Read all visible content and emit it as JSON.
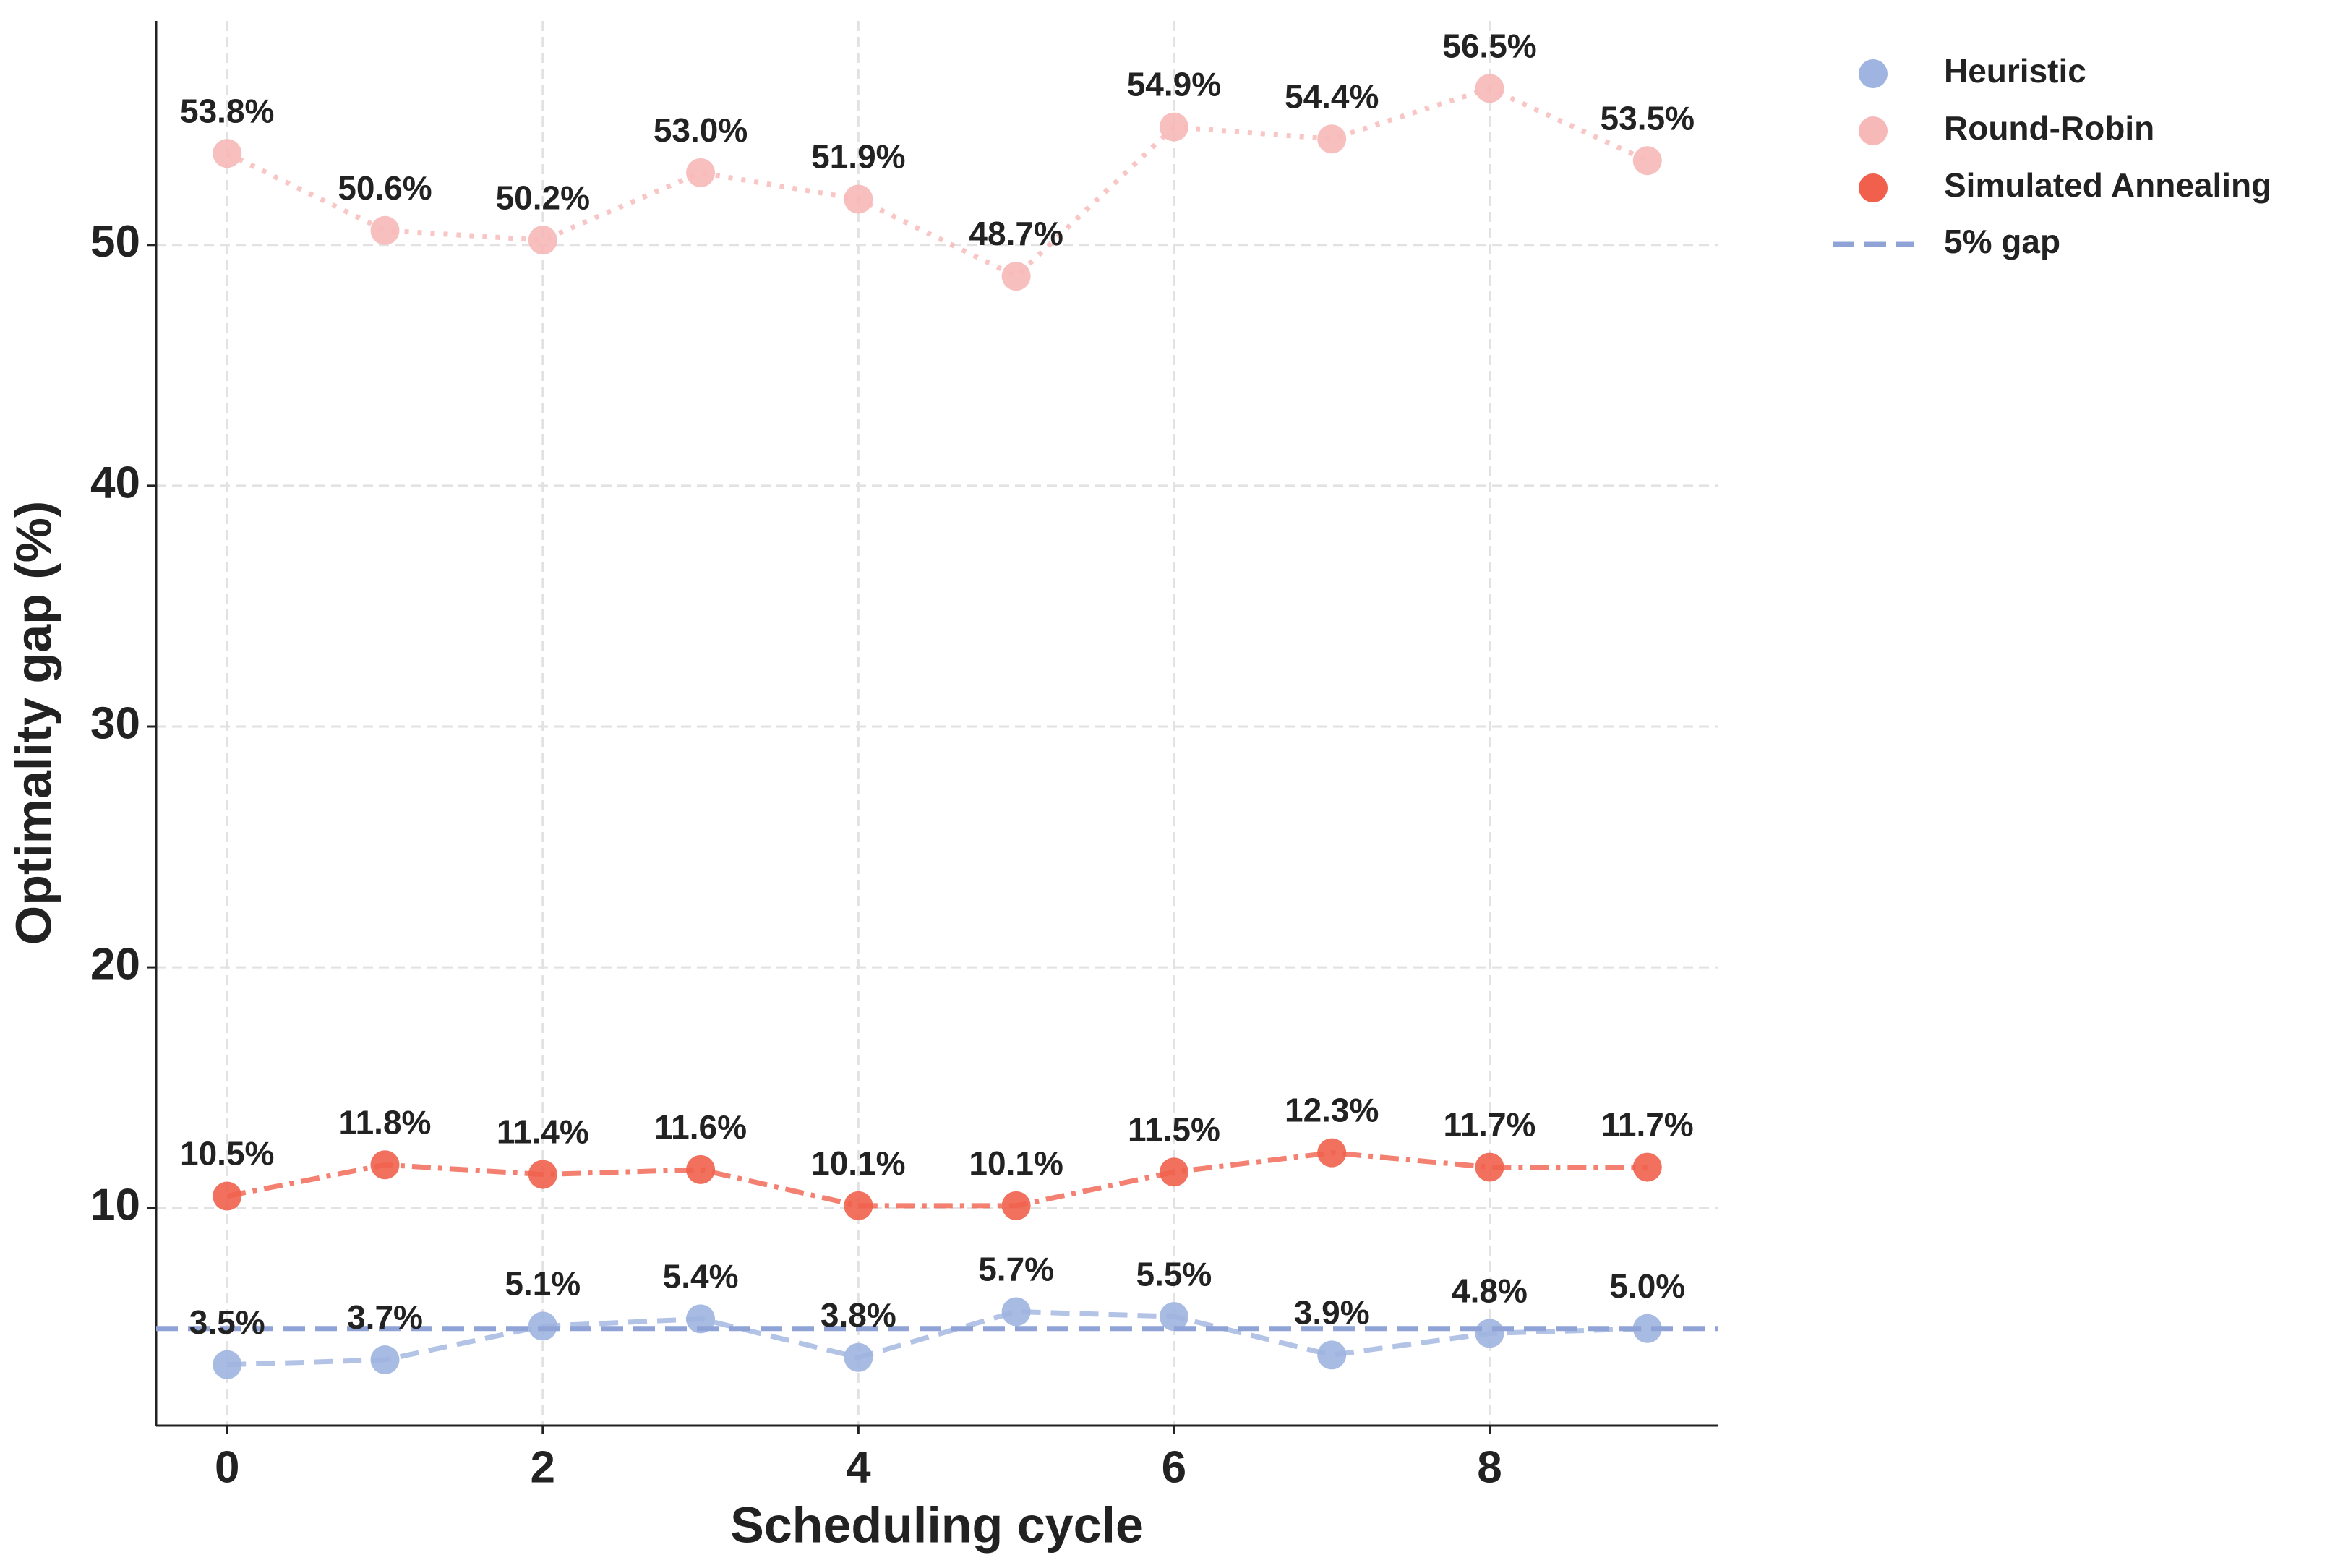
{
  "chart_data": {
    "type": "line",
    "x_label": "Scheduling cycle",
    "y_label": "Optimality gap (%)",
    "x": [
      0,
      1,
      2,
      3,
      4,
      5,
      6,
      7,
      8,
      9
    ],
    "series": [
      {
        "name": "Heuristic",
        "color": "#9fb4e0",
        "line_style": "dashed",
        "values": [
          3.5,
          3.7,
          5.1,
          5.4,
          3.8,
          5.7,
          5.5,
          3.9,
          4.8,
          5.0
        ],
        "value_labels": [
          "3.5%",
          "3.7%",
          "5.1%",
          "5.4%",
          "3.8%",
          "5.7%",
          "5.5%",
          "3.9%",
          "4.8%",
          "5.0%"
        ]
      },
      {
        "name": "Round-Robin",
        "color": "#f7b8b8",
        "line_style": "dotted",
        "values": [
          53.8,
          50.6,
          50.2,
          53.0,
          51.9,
          48.7,
          54.9,
          54.4,
          56.5,
          53.5
        ],
        "value_labels": [
          "53.8%",
          "50.6%",
          "50.2%",
          "53.0%",
          "51.9%",
          "48.7%",
          "54.9%",
          "54.4%",
          "56.5%",
          "53.5%"
        ]
      },
      {
        "name": "Simulated Annealing",
        "color": "#f0604d",
        "line_style": "dashdot",
        "values": [
          10.5,
          11.8,
          11.4,
          11.6,
          10.1,
          10.1,
          11.5,
          12.3,
          11.7,
          11.7
        ],
        "value_labels": [
          "10.5%",
          "11.8%",
          "11.4%",
          "11.6%",
          "10.1%",
          "10.1%",
          "11.5%",
          "12.3%",
          "11.7%",
          "11.7%"
        ]
      }
    ],
    "reference_line": {
      "name": "5% gap",
      "value": 5,
      "color": "#8fa3d6"
    },
    "xlim": [
      -0.45,
      9.45
    ],
    "xticks": [
      0,
      2,
      4,
      6,
      8
    ],
    "ylim": [
      0.97,
      59.3
    ],
    "yticks": [
      10,
      20,
      30,
      40,
      50
    ],
    "grid": true,
    "legend": "outside right"
  }
}
